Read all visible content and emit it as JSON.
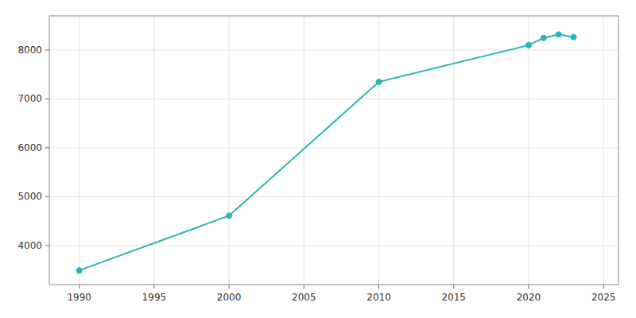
{
  "chart_data": {
    "type": "line",
    "x": [
      1990,
      2000,
      2010,
      2020,
      2021,
      2022,
      2023
    ],
    "values": [
      3490,
      4610,
      7350,
      8100,
      8250,
      8320,
      8265
    ],
    "color": "#2ab5b5",
    "marker": "circle",
    "xlim": [
      1988,
      2026
    ],
    "ylim": [
      3200,
      8700
    ],
    "xticks": [
      1990,
      1995,
      2000,
      2005,
      2010,
      2015,
      2020,
      2025
    ],
    "yticks": [
      4000,
      5000,
      6000,
      7000,
      8000
    ],
    "grid": true
  }
}
